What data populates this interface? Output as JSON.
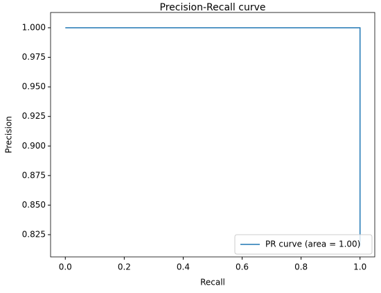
{
  "chart_data": {
    "type": "line",
    "title": "Precision-Recall curve",
    "x_label": "Recall",
    "y_label": "Precision",
    "x": [
      0,
      1,
      1
    ],
    "series": [
      {
        "name": "PR curve (area = 1.00)",
        "color": "#1f77b4",
        "values": [
          1,
          1,
          0.815
        ]
      }
    ],
    "xlim": [
      -0.05,
      1.05
    ],
    "xticks": [
      {
        "value": 0,
        "label": "0.0"
      },
      {
        "value": 0.2,
        "label": "0.2"
      },
      {
        "value": 0.4,
        "label": "0.4"
      },
      {
        "value": 0.6,
        "label": "0.6"
      },
      {
        "value": 0.8,
        "label": "0.8"
      },
      {
        "value": 1,
        "label": "1.0"
      }
    ],
    "ylim": [
      0.8062,
      1.0129
    ],
    "yticks": [
      {
        "value": 0.825,
        "label": "0.825"
      },
      {
        "value": 0.85,
        "label": "0.850"
      },
      {
        "value": 0.875,
        "label": "0.875"
      },
      {
        "value": 0.9,
        "label": "0.900"
      },
      {
        "value": 0.925,
        "label": "0.925"
      },
      {
        "value": 0.95,
        "label": "0.950"
      },
      {
        "value": 0.975,
        "label": "0.975"
      },
      {
        "value": 1,
        "label": "1.000"
      }
    ],
    "grid": false,
    "legend": "lower right"
  }
}
